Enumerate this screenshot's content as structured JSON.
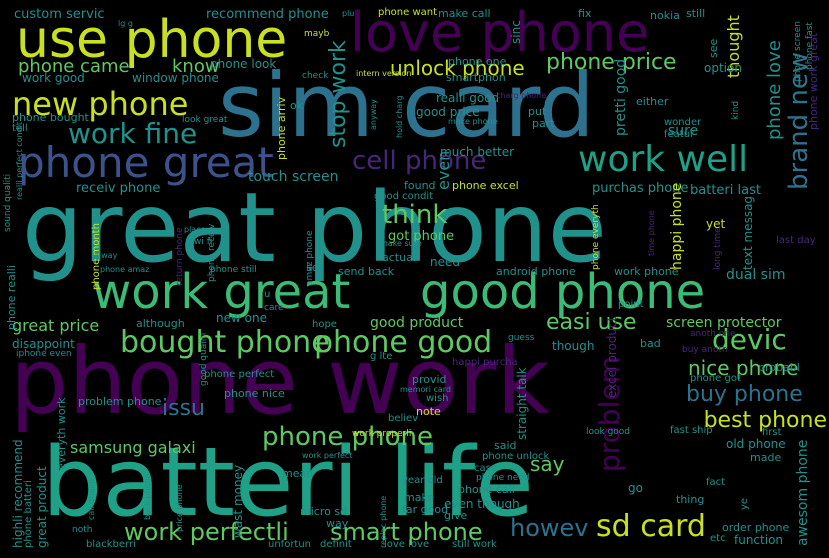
{
  "cloud": {
    "palette": {
      "purple": "#440154",
      "indigo": "#3b528b",
      "teal": "#21918c",
      "green": "#5ec962",
      "lime": "#c8e020",
      "background": "#000000"
    },
    "words": [
      "great phone",
      "phone work",
      "batteri life",
      "sim card",
      "use phone",
      "love phone",
      "work great",
      "good phone",
      "phone great",
      "new phone",
      "work well",
      "work fine",
      "cell phone",
      "bought phone",
      "phone good",
      "phone phone",
      "sd card",
      "work perfectli",
      "smart phone",
      "howev",
      "devic",
      "problem",
      "brand new",
      "unlock phone",
      "phone price",
      "phone came",
      "know",
      "think",
      "stop work",
      "easi use",
      "best phone",
      "buy phone",
      "nice phone",
      "phone love",
      "say",
      "issu",
      "samsung galaxi",
      "great price",
      "screen protector",
      "good product",
      "touch screen",
      "receiv phone",
      "purchas phone",
      "batteri last",
      "custom servic",
      "recommend phone",
      "work good",
      "window phone",
      "phone look",
      "phone want",
      "make call",
      "nokia",
      "fix",
      "sinc",
      "phone one",
      "intern version",
      "smartphon",
      "realli good",
      "good price",
      "put",
      "part",
      "much better",
      "even",
      "found",
      "phone excel",
      "good condit",
      "got phone",
      "need",
      "android phone",
      "work phone",
      "dual sim",
      "send back",
      "actual",
      "set",
      "wi fi",
      "phone still",
      "phone month",
      "although",
      "new one",
      "hope",
      "disappoint",
      "great product",
      "everyth work",
      "highli recommend",
      "phone batteri",
      "wast money",
      "mean",
      "phone call",
      "even though",
      "give",
      "way",
      "micro sd",
      "unfortun",
      "definit",
      "love love",
      "still work",
      "blackberri",
      "function",
      "etc",
      "order phone",
      "old phone",
      "made",
      "thing",
      "fact",
      "go",
      "excel product",
      "said",
      "phone unlock",
      "case",
      "phone need",
      "make",
      "far good",
      "year old",
      "straight talk",
      "though",
      "bad",
      "provid",
      "note",
      "believ",
      "wish",
      "memori card",
      "good qualiti",
      "phone nice",
      "problem phone",
      "phone perfect",
      "happi purcha",
      "g lte",
      "yet",
      "point",
      "text messag",
      "happi phone",
      "last day",
      "long time",
      "thought",
      "option",
      "still",
      "see",
      "anoth one",
      "buy anoth",
      "probabl",
      "phone got",
      "fast ship",
      "first",
      "look good",
      "work properli",
      "awesom phone",
      "tell",
      "phone bought",
      "look great",
      "ok",
      "phone arriv",
      "check",
      "mayb",
      "lg g",
      "plu",
      "either",
      "charg phone",
      "make phone",
      "hold charg",
      "anyway",
      "wonder",
      "featur",
      "sure",
      "kind",
      "pretti good",
      "phone fast",
      "phone screen",
      "phone realli",
      "phone amaz",
      "place",
      "alway",
      "return phone",
      "phone receiv",
      "amaz phone",
      "make sure",
      "care",
      "u",
      "guess",
      "iphone even",
      "sound qualiti",
      "realli perfect condit",
      "back phone",
      "call qualiti",
      "price phone",
      "replac phone",
      "noth",
      "work perfect",
      "phone everyth",
      "time phone",
      "ye",
      "phone work great"
    ]
  }
}
